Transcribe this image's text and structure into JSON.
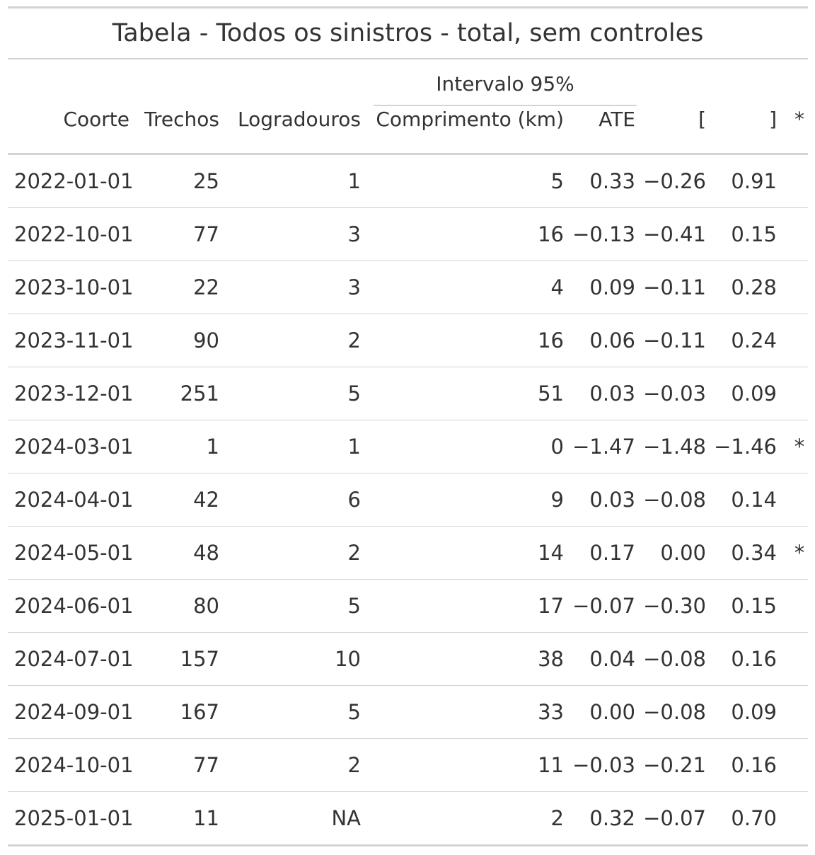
{
  "table": {
    "title": "Tabela - Todos os sinistros - total, sem controles",
    "spanner_label": "Intervalo 95%",
    "columns": {
      "coorte": "Coorte",
      "trechos": "Trechos",
      "logradouros": "Logradouros",
      "comprimento": "Comprimento (km)",
      "ate": "ATE",
      "lower": "[",
      "upper": "]",
      "sig": "*"
    },
    "rows": [
      {
        "coorte": "2022-01-01",
        "trechos": "25",
        "logradouros": "1",
        "comprimento": "5",
        "ate": "0.33",
        "lower": "−0.26",
        "upper": "0.91",
        "sig": ""
      },
      {
        "coorte": "2022-10-01",
        "trechos": "77",
        "logradouros": "3",
        "comprimento": "16",
        "ate": "−0.13",
        "lower": "−0.41",
        "upper": "0.15",
        "sig": ""
      },
      {
        "coorte": "2023-10-01",
        "trechos": "22",
        "logradouros": "3",
        "comprimento": "4",
        "ate": "0.09",
        "lower": "−0.11",
        "upper": "0.28",
        "sig": ""
      },
      {
        "coorte": "2023-11-01",
        "trechos": "90",
        "logradouros": "2",
        "comprimento": "16",
        "ate": "0.06",
        "lower": "−0.11",
        "upper": "0.24",
        "sig": ""
      },
      {
        "coorte": "2023-12-01",
        "trechos": "251",
        "logradouros": "5",
        "comprimento": "51",
        "ate": "0.03",
        "lower": "−0.03",
        "upper": "0.09",
        "sig": ""
      },
      {
        "coorte": "2024-03-01",
        "trechos": "1",
        "logradouros": "1",
        "comprimento": "0",
        "ate": "−1.47",
        "lower": "−1.48",
        "upper": "−1.46",
        "sig": "*"
      },
      {
        "coorte": "2024-04-01",
        "trechos": "42",
        "logradouros": "6",
        "comprimento": "9",
        "ate": "0.03",
        "lower": "−0.08",
        "upper": "0.14",
        "sig": ""
      },
      {
        "coorte": "2024-05-01",
        "trechos": "48",
        "logradouros": "2",
        "comprimento": "14",
        "ate": "0.17",
        "lower": "0.00",
        "upper": "0.34",
        "sig": "*"
      },
      {
        "coorte": "2024-06-01",
        "trechos": "80",
        "logradouros": "5",
        "comprimento": "17",
        "ate": "−0.07",
        "lower": "−0.30",
        "upper": "0.15",
        "sig": ""
      },
      {
        "coorte": "2024-07-01",
        "trechos": "157",
        "logradouros": "10",
        "comprimento": "38",
        "ate": "0.04",
        "lower": "−0.08",
        "upper": "0.16",
        "sig": ""
      },
      {
        "coorte": "2024-09-01",
        "trechos": "167",
        "logradouros": "5",
        "comprimento": "33",
        "ate": "0.00",
        "lower": "−0.08",
        "upper": "0.09",
        "sig": ""
      },
      {
        "coorte": "2024-10-01",
        "trechos": "77",
        "logradouros": "2",
        "comprimento": "11",
        "ate": "−0.03",
        "lower": "−0.21",
        "upper": "0.16",
        "sig": ""
      },
      {
        "coorte": "2025-01-01",
        "trechos": "11",
        "logradouros": "NA",
        "comprimento": "2",
        "ate": "0.32",
        "lower": "−0.07",
        "upper": "0.70",
        "sig": ""
      }
    ]
  }
}
